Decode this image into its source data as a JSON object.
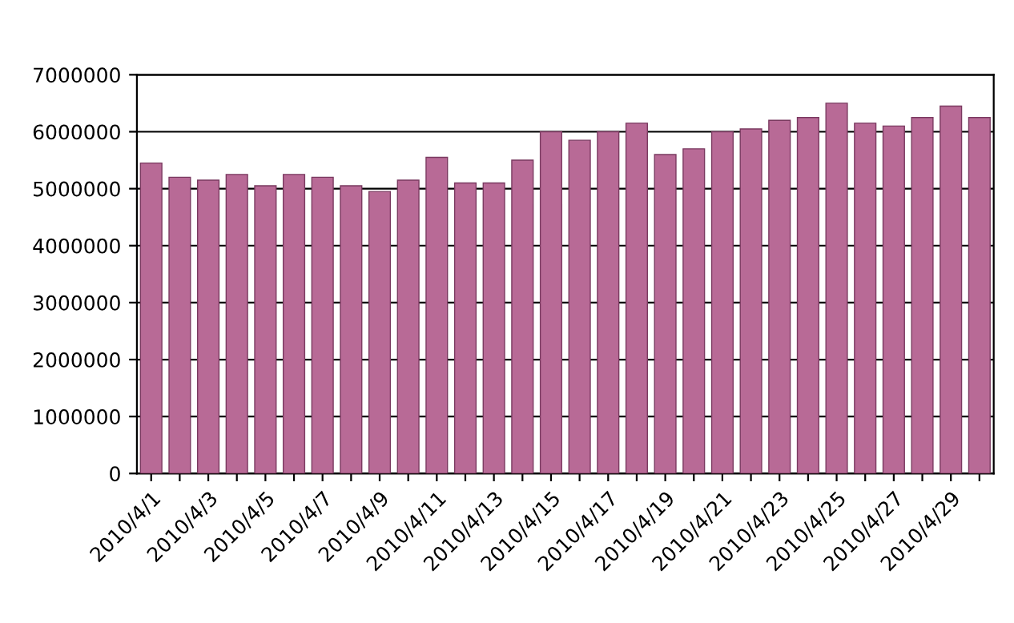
{
  "chart_data": {
    "type": "bar",
    "categories": [
      "2010/4/1",
      null,
      "2010/4/3",
      null,
      "2010/4/5",
      null,
      "2010/4/7",
      null,
      "2010/4/9",
      null,
      "2010/4/11",
      null,
      "2010/4/13",
      null,
      "2010/4/15",
      null,
      "2010/4/17",
      null,
      "2010/4/19",
      null,
      "2010/4/21",
      null,
      "2010/4/23",
      null,
      "2010/4/25",
      null,
      "2010/4/27",
      null,
      "2010/4/29",
      null
    ],
    "series": [
      {
        "color": "#b86a96",
        "values": [
          5450000,
          5200000,
          5150000,
          5250000,
          5050000,
          5250000,
          5200000,
          5050000,
          4950000,
          5150000,
          5550000,
          5100000,
          5100000,
          5500000,
          6000000,
          5850000,
          6000000,
          6150000,
          5600000,
          5700000,
          6000000,
          6050000,
          6200000,
          6250000,
          6500000,
          6150000,
          6100000,
          6250000,
          6450000,
          6250000
        ]
      }
    ],
    "ylim": [
      0,
      7000000
    ],
    "yticks": [
      0,
      1000000,
      2000000,
      3000000,
      4000000,
      5000000,
      6000000,
      7000000
    ],
    "grid": "y"
  }
}
